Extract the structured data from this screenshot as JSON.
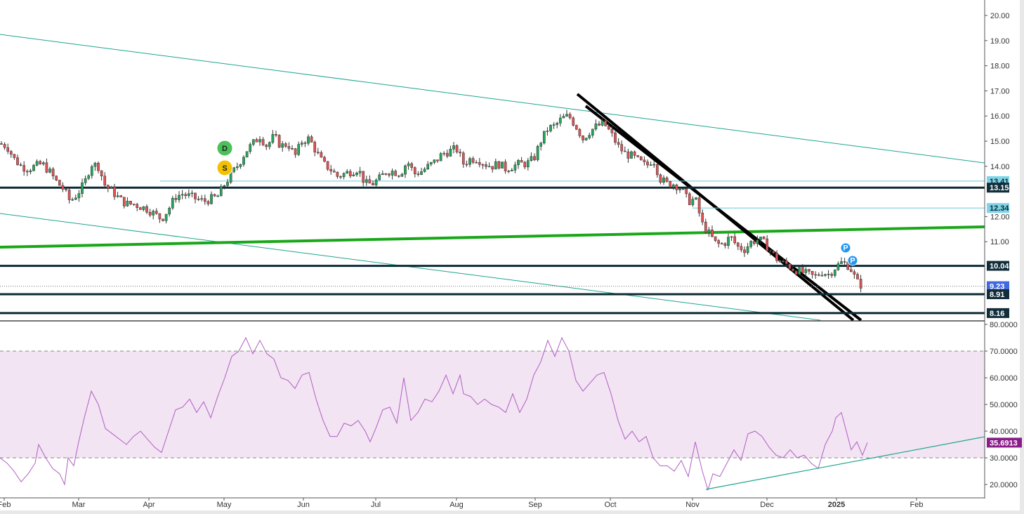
{
  "chart_data": [
    {
      "type": "candlestick",
      "title": "",
      "y_axis_side": "right",
      "ylim": [
        8.0,
        20.3
      ],
      "yticks": [
        "20.00",
        "19.00",
        "18.00",
        "17.00",
        "16.00",
        "15.00",
        "14.00",
        "12.00",
        "11.00"
      ],
      "x_labels": [
        "Feb",
        "Mar",
        "Apr",
        "May",
        "Jun",
        "Jul",
        "Aug",
        "Sep",
        "Oct",
        "Nov",
        "Dec",
        "2025",
        "Feb"
      ],
      "close_path": [
        [
          0,
          14.9
        ],
        [
          10,
          14.8
        ],
        [
          20,
          14.3
        ],
        [
          30,
          14.0
        ],
        [
          40,
          13.9
        ],
        [
          50,
          14.0
        ],
        [
          60,
          14.1
        ],
        [
          70,
          13.8
        ],
        [
          80,
          13.4
        ],
        [
          90,
          13.1
        ],
        [
          100,
          12.6
        ],
        [
          110,
          12.9
        ],
        [
          120,
          13.3
        ],
        [
          130,
          14.1
        ],
        [
          140,
          14.0
        ],
        [
          150,
          13.2
        ],
        [
          160,
          13.0
        ],
        [
          170,
          12.7
        ],
        [
          180,
          12.5
        ],
        [
          190,
          12.5
        ],
        [
          200,
          12.4
        ],
        [
          210,
          12.3
        ],
        [
          220,
          12.1
        ],
        [
          230,
          11.9
        ],
        [
          240,
          12.3
        ],
        [
          250,
          12.8
        ],
        [
          260,
          12.9
        ],
        [
          270,
          12.8
        ],
        [
          280,
          12.7
        ],
        [
          290,
          12.6
        ],
        [
          300,
          12.7
        ],
        [
          310,
          12.8
        ],
        [
          320,
          13.3
        ],
        [
          330,
          13.7
        ],
        [
          340,
          14.1
        ],
        [
          350,
          14.6
        ],
        [
          360,
          14.9
        ],
        [
          370,
          15.2
        ],
        [
          380,
          14.8
        ],
        [
          390,
          15.2
        ],
        [
          400,
          14.8
        ],
        [
          410,
          14.9
        ],
        [
          420,
          14.4
        ],
        [
          430,
          15.0
        ],
        [
          440,
          15.1
        ],
        [
          450,
          14.6
        ],
        [
          460,
          14.1
        ],
        [
          470,
          13.9
        ],
        [
          480,
          13.6
        ],
        [
          490,
          13.7
        ],
        [
          500,
          13.8
        ],
        [
          510,
          13.9
        ],
        [
          520,
          13.3
        ],
        [
          530,
          13.3
        ],
        [
          540,
          13.5
        ],
        [
          550,
          13.8
        ],
        [
          560,
          13.8
        ],
        [
          570,
          13.7
        ],
        [
          580,
          14.2
        ],
        [
          590,
          13.7
        ],
        [
          600,
          13.8
        ],
        [
          610,
          14.0
        ],
        [
          620,
          14.2
        ],
        [
          630,
          14.5
        ],
        [
          640,
          14.6
        ],
        [
          650,
          14.7
        ],
        [
          660,
          14.1
        ],
        [
          670,
          14.3
        ],
        [
          680,
          14.3
        ],
        [
          690,
          14.1
        ],
        [
          700,
          14.0
        ],
        [
          710,
          14.1
        ],
        [
          720,
          13.9
        ],
        [
          730,
          14.0
        ],
        [
          740,
          14.1
        ],
        [
          750,
          14.1
        ],
        [
          760,
          14.3
        ],
        [
          770,
          15.0
        ],
        [
          780,
          15.5
        ],
        [
          790,
          15.6
        ],
        [
          800,
          15.9
        ],
        [
          810,
          16.0
        ],
        [
          820,
          15.6
        ],
        [
          830,
          15.1
        ],
        [
          840,
          15.4
        ],
        [
          850,
          15.6
        ],
        [
          860,
          15.7
        ],
        [
          870,
          15.3
        ],
        [
          880,
          14.8
        ],
        [
          890,
          14.5
        ],
        [
          900,
          14.4
        ],
        [
          910,
          14.2
        ],
        [
          920,
          14.0
        ],
        [
          930,
          14.3
        ],
        [
          940,
          13.5
        ],
        [
          950,
          13.3
        ],
        [
          960,
          13.3
        ],
        [
          970,
          13.1
        ],
        [
          980,
          12.6
        ],
        [
          990,
          12.7
        ],
        [
          1000,
          11.7
        ],
        [
          1010,
          11.3
        ],
        [
          1020,
          10.9
        ],
        [
          1030,
          10.9
        ],
        [
          1040,
          11.2
        ],
        [
          1050,
          10.8
        ],
        [
          1060,
          10.7
        ],
        [
          1070,
          11.0
        ],
        [
          1080,
          11.1
        ],
        [
          1090,
          10.9
        ],
        [
          1100,
          10.5
        ],
        [
          1110,
          10.2
        ],
        [
          1120,
          10.1
        ],
        [
          1130,
          9.9
        ],
        [
          1140,
          9.8
        ],
        [
          1150,
          9.7
        ],
        [
          1160,
          9.6
        ],
        [
          1170,
          9.8
        ],
        [
          1180,
          9.7
        ],
        [
          1190,
          10.0
        ],
        [
          1200,
          10.2
        ],
        [
          1210,
          10.0
        ],
        [
          1220,
          9.4
        ],
        [
          1230,
          9.2
        ]
      ],
      "price_tags": [
        {
          "label": "13.41",
          "value": 13.41,
          "bg": "#7fd4e8",
          "fg": "#0a2a33"
        },
        {
          "label": "13.15",
          "value": 13.15,
          "bg": "#112e3a",
          "fg": "#ffffff"
        },
        {
          "label": "12.34",
          "value": 12.34,
          "bg": "#7fd4e8",
          "fg": "#0a2a33"
        },
        {
          "label": "10.04",
          "value": 10.04,
          "bg": "#112e3a",
          "fg": "#ffffff"
        },
        {
          "label": "9.23",
          "value": 9.23,
          "bg": "#4169e1",
          "fg": "#ffffff"
        },
        {
          "label": "8.91",
          "value": 8.91,
          "bg": "#112e3a",
          "fg": "#ffffff"
        },
        {
          "label": "8.16",
          "value": 8.16,
          "bg": "#112e3a",
          "fg": "#ffffff"
        }
      ],
      "markers": [
        {
          "label": "D",
          "color": "#4cc05a"
        },
        {
          "label": "S",
          "color": "#f2c200"
        },
        {
          "label": "P",
          "color": "#2196f3"
        },
        {
          "label": "P",
          "color": "#2196f3"
        }
      ],
      "colors": {
        "up": "#26a65b",
        "down": "#e05353",
        "trend": "#1ca58d",
        "support": "#0e2a35",
        "green_line": "#1aa81a",
        "black_trend": "#000000"
      }
    },
    {
      "type": "line",
      "ylim": [
        15,
        80
      ],
      "yticks": [
        "80.0000",
        "70.0000",
        "60.0000",
        "50.0000",
        "40.0000",
        "30.0000",
        "20.0000"
      ],
      "overbought": 70,
      "oversold": 30,
      "last_value_label": "35.6913",
      "last_value": 35.6913,
      "series": [
        {
          "color": "#b05fc5",
          "values": [
            [
              0,
              30
            ],
            [
              10,
              28
            ],
            [
              20,
              25
            ],
            [
              30,
              21
            ],
            [
              40,
              24
            ],
            [
              50,
              28
            ],
            [
              55,
              35
            ],
            [
              65,
              30
            ],
            [
              75,
              26
            ],
            [
              85,
              24
            ],
            [
              92,
              20
            ],
            [
              97,
              30
            ],
            [
              105,
              27
            ],
            [
              112,
              36
            ],
            [
              120,
              45
            ],
            [
              130,
              55
            ],
            [
              140,
              50
            ],
            [
              150,
              41
            ],
            [
              160,
              39
            ],
            [
              170,
              37
            ],
            [
              180,
              35
            ],
            [
              190,
              38
            ],
            [
              200,
              40
            ],
            [
              210,
              37
            ],
            [
              220,
              34
            ],
            [
              230,
              32
            ],
            [
              240,
              40
            ],
            [
              250,
              48
            ],
            [
              260,
              49
            ],
            [
              270,
              52
            ],
            [
              280,
              47
            ],
            [
              290,
              51
            ],
            [
              300,
              45
            ],
            [
              310,
              53
            ],
            [
              320,
              60
            ],
            [
              330,
              68
            ],
            [
              340,
              70
            ],
            [
              350,
              75
            ],
            [
              360,
              69
            ],
            [
              370,
              74
            ],
            [
              380,
              69
            ],
            [
              390,
              67
            ],
            [
              400,
              60
            ],
            [
              410,
              59
            ],
            [
              420,
              56
            ],
            [
              430,
              61
            ],
            [
              440,
              62
            ],
            [
              450,
              52
            ],
            [
              460,
              44
            ],
            [
              470,
              38
            ],
            [
              480,
              38
            ],
            [
              490,
              43
            ],
            [
              500,
              42
            ],
            [
              510,
              44
            ],
            [
              520,
              40
            ],
            [
              527,
              36
            ],
            [
              535,
              41
            ],
            [
              545,
              48
            ],
            [
              555,
              49
            ],
            [
              565,
              43
            ],
            [
              575,
              60
            ],
            [
              585,
              44
            ],
            [
              595,
              47
            ],
            [
              605,
              52
            ],
            [
              615,
              51
            ],
            [
              625,
              55
            ],
            [
              635,
              61
            ],
            [
              645,
              54
            ],
            [
              655,
              61
            ],
            [
              660,
              54
            ],
            [
              670,
              53
            ],
            [
              680,
              50
            ],
            [
              690,
              52
            ],
            [
              700,
              50
            ],
            [
              710,
              49
            ],
            [
              720,
              47
            ],
            [
              730,
              54
            ],
            [
              740,
              47
            ],
            [
              750,
              52
            ],
            [
              760,
              61
            ],
            [
              770,
              66
            ],
            [
              780,
              74
            ],
            [
              790,
              68
            ],
            [
              800,
              75
            ],
            [
              810,
              70
            ],
            [
              820,
              59
            ],
            [
              830,
              55
            ],
            [
              840,
              58
            ],
            [
              850,
              61
            ],
            [
              860,
              62
            ],
            [
              870,
              54
            ],
            [
              880,
              44
            ],
            [
              890,
              37
            ],
            [
              900,
              40
            ],
            [
              910,
              36
            ],
            [
              920,
              38
            ],
            [
              930,
              30
            ],
            [
              940,
              27
            ],
            [
              950,
              27
            ],
            [
              960,
              25
            ],
            [
              970,
              29
            ],
            [
              980,
              23
            ],
            [
              990,
              36
            ],
            [
              1000,
              25
            ],
            [
              1008,
              18
            ],
            [
              1015,
              24
            ],
            [
              1025,
              23
            ],
            [
              1035,
              28
            ],
            [
              1045,
              33
            ],
            [
              1055,
              29
            ],
            [
              1065,
              39
            ],
            [
              1075,
              40
            ],
            [
              1085,
              38
            ],
            [
              1095,
              34
            ],
            [
              1105,
              31
            ],
            [
              1115,
              30
            ],
            [
              1125,
              33
            ],
            [
              1135,
              30
            ],
            [
              1145,
              31
            ],
            [
              1155,
              28
            ],
            [
              1165,
              26
            ],
            [
              1175,
              35
            ],
            [
              1185,
              40
            ],
            [
              1190,
              45
            ],
            [
              1198,
              47
            ],
            [
              1205,
              40
            ],
            [
              1212,
              33
            ],
            [
              1220,
              36
            ],
            [
              1228,
              31
            ],
            [
              1235,
              35.7
            ]
          ]
        }
      ]
    }
  ]
}
